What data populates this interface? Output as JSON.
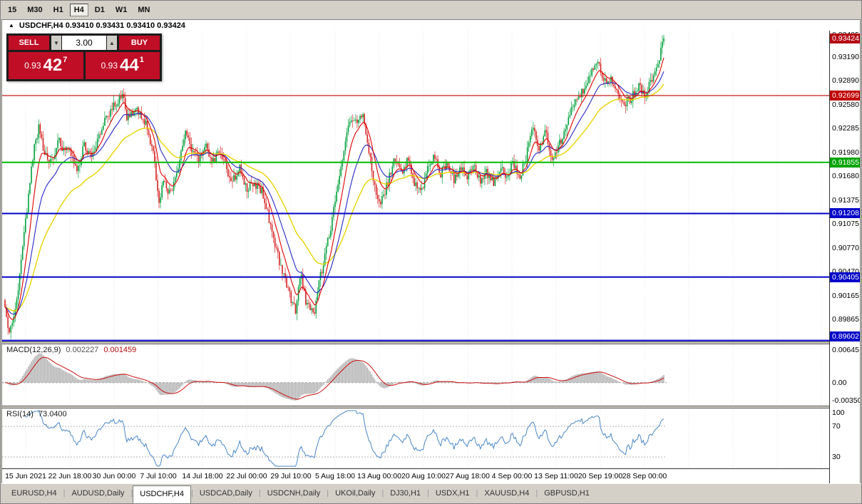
{
  "toolbar": {
    "periods": [
      "15",
      "M30",
      "H1",
      "H4",
      "D1",
      "W1",
      "MN"
    ],
    "active": "H4"
  },
  "chart_header": {
    "toggle_icon": "▲",
    "title": "USDCHF,H4 0.93410 0.93431 0.93410 0.93424"
  },
  "trade_panel": {
    "sell_label": "SELL",
    "buy_label": "BUY",
    "volume": "3.00",
    "down_arrow": "▼",
    "up_arrow": "▲",
    "sell_price": {
      "base": "0.93",
      "big": "42",
      "sup": "7"
    },
    "buy_price": {
      "base": "0.93",
      "big": "44",
      "sup": "1"
    },
    "button_color": "#c00e27"
  },
  "price_scale": {
    "ticks": [
      "0.93495",
      "0.93190",
      "0.92890",
      "0.92580",
      "0.92285",
      "0.91980",
      "0.91680",
      "0.91375",
      "0.91075",
      "0.90770",
      "0.90470",
      "0.90165",
      "0.89865"
    ],
    "badges": [
      {
        "text": "0.93424",
        "price": 0.93424,
        "color": "#b40a14"
      },
      {
        "text": "0.92699",
        "price": 0.92699,
        "color": "#c00000"
      },
      {
        "text": "0.91855",
        "price": 0.91855,
        "color": "#00a400"
      },
      {
        "text": "0.91208",
        "price": 0.91208,
        "color": "#0000c8"
      },
      {
        "text": "0.90405",
        "price": 0.90405,
        "color": "#0000c8"
      },
      {
        "text": "0.89602",
        "price": 0.89602,
        "color": "#0000c8"
      }
    ]
  },
  "macd": {
    "label": "MACD(12,26,9)",
    "value_main": "0.002227",
    "value_signal": "0.001459",
    "ticks": [
      {
        "text": "0.00645",
        "value": 0.00645
      },
      {
        "text": "0.00",
        "value": 0
      },
      {
        "text": "-0.00350",
        "value": -0.0035
      }
    ]
  },
  "rsi": {
    "label": "RSI(14)",
    "value": "73.0400",
    "ticks": [
      {
        "text": "100",
        "value": 100
      },
      {
        "text": "70",
        "value": 70
      },
      {
        "text": "30",
        "value": 30
      }
    ]
  },
  "time_axis": {
    "labels": [
      "15 Jun 2021",
      "22 Jun 18:00",
      "30 Jun 00:00",
      "7 Jul 10:00",
      "14 Jul 18:00",
      "22 Jul 00:00",
      "29 Jul 10:00",
      "5 Aug 18:00",
      "13 Aug 00:00",
      "20 Aug 10:00",
      "27 Aug 18:00",
      "4 Sep 00:00",
      "13 Sep 11:00",
      "20 Sep 19:00",
      "28 Sep 00:00"
    ]
  },
  "tabs": {
    "divider": "|",
    "active_index": 2,
    "items": [
      "EURUSD,H4",
      "AUDUSD,Daily",
      "USDCHF,H4",
      "USDCAD,Daily",
      "USDCNH,Daily",
      "UKOil,Daily",
      "DJ30,H1",
      "USDX,H1",
      "XAUUSD,H4",
      "GBPUSD,H1"
    ]
  },
  "chart_data": {
    "type": "candlestick",
    "title": "USDCHF,H4",
    "current_bar": {
      "open": 0.9341,
      "high": 0.93431,
      "low": 0.9341,
      "close": 0.93424
    },
    "last_close": 0.93424,
    "y_axis": {
      "top": 0.9352,
      "bottom": 0.8959
    },
    "candles": {
      "count": 450,
      "seed": 11,
      "noise": 0.00058,
      "wick": 0.0009
    },
    "close_path": [
      [
        0.0,
        0.9005
      ],
      [
        0.005,
        0.8968
      ],
      [
        0.013,
        0.8988
      ],
      [
        0.022,
        0.904
      ],
      [
        0.033,
        0.9125
      ],
      [
        0.044,
        0.9205
      ],
      [
        0.052,
        0.9231
      ],
      [
        0.061,
        0.9193
      ],
      [
        0.071,
        0.9184
      ],
      [
        0.081,
        0.9213
      ],
      [
        0.091,
        0.92
      ],
      [
        0.102,
        0.9196
      ],
      [
        0.11,
        0.9172
      ],
      [
        0.12,
        0.9207
      ],
      [
        0.131,
        0.9189
      ],
      [
        0.143,
        0.9221
      ],
      [
        0.156,
        0.9245
      ],
      [
        0.17,
        0.9262
      ],
      [
        0.177,
        0.9274
      ],
      [
        0.185,
        0.9244
      ],
      [
        0.199,
        0.9254
      ],
      [
        0.213,
        0.9237
      ],
      [
        0.226,
        0.9192
      ],
      [
        0.233,
        0.9136
      ],
      [
        0.241,
        0.9159
      ],
      [
        0.251,
        0.9145
      ],
      [
        0.263,
        0.9179
      ],
      [
        0.274,
        0.9221
      ],
      [
        0.284,
        0.9201
      ],
      [
        0.294,
        0.9191
      ],
      [
        0.304,
        0.9209
      ],
      [
        0.314,
        0.9187
      ],
      [
        0.324,
        0.9197
      ],
      [
        0.336,
        0.9177
      ],
      [
        0.346,
        0.9161
      ],
      [
        0.356,
        0.9182
      ],
      [
        0.366,
        0.9153
      ],
      [
        0.377,
        0.9158
      ],
      [
        0.389,
        0.9151
      ],
      [
        0.399,
        0.912
      ],
      [
        0.409,
        0.9083
      ],
      [
        0.42,
        0.905
      ],
      [
        0.431,
        0.902
      ],
      [
        0.441,
        0.9
      ],
      [
        0.449,
        0.9046
      ],
      [
        0.456,
        0.901
      ],
      [
        0.463,
        0.9001
      ],
      [
        0.47,
        0.8998
      ],
      [
        0.478,
        0.904
      ],
      [
        0.487,
        0.9072
      ],
      [
        0.497,
        0.9115
      ],
      [
        0.507,
        0.9168
      ],
      [
        0.517,
        0.9215
      ],
      [
        0.527,
        0.9243
      ],
      [
        0.535,
        0.9236
      ],
      [
        0.543,
        0.9244
      ],
      [
        0.553,
        0.9196
      ],
      [
        0.563,
        0.9148
      ],
      [
        0.571,
        0.9134
      ],
      [
        0.581,
        0.9161
      ],
      [
        0.591,
        0.9187
      ],
      [
        0.601,
        0.9171
      ],
      [
        0.611,
        0.9189
      ],
      [
        0.621,
        0.9159
      ],
      [
        0.631,
        0.9146
      ],
      [
        0.641,
        0.9177
      ],
      [
        0.651,
        0.9197
      ],
      [
        0.661,
        0.9171
      ],
      [
        0.671,
        0.9187
      ],
      [
        0.681,
        0.9164
      ],
      [
        0.691,
        0.9178
      ],
      [
        0.701,
        0.9168
      ],
      [
        0.711,
        0.9181
      ],
      [
        0.721,
        0.9162
      ],
      [
        0.731,
        0.9172
      ],
      [
        0.741,
        0.916
      ],
      [
        0.751,
        0.9179
      ],
      [
        0.761,
        0.9169
      ],
      [
        0.771,
        0.9184
      ],
      [
        0.781,
        0.9166
      ],
      [
        0.791,
        0.9192
      ],
      [
        0.801,
        0.9229
      ],
      [
        0.811,
        0.9201
      ],
      [
        0.821,
        0.9226
      ],
      [
        0.831,
        0.9187
      ],
      [
        0.841,
        0.9206
      ],
      [
        0.851,
        0.9233
      ],
      [
        0.861,
        0.9256
      ],
      [
        0.873,
        0.9271
      ],
      [
        0.883,
        0.9286
      ],
      [
        0.893,
        0.9303
      ],
      [
        0.9,
        0.9316
      ],
      [
        0.909,
        0.9287
      ],
      [
        0.919,
        0.9294
      ],
      [
        0.93,
        0.9276
      ],
      [
        0.941,
        0.9258
      ],
      [
        0.952,
        0.9269
      ],
      [
        0.962,
        0.9282
      ],
      [
        0.971,
        0.9272
      ],
      [
        0.981,
        0.9289
      ],
      [
        0.989,
        0.9303
      ],
      [
        1.0,
        0.9342
      ]
    ],
    "h_lines": [
      {
        "price": 0.92699,
        "color": "#c00000",
        "width": 1.2
      },
      {
        "price": 0.91855,
        "color": "#00bc00",
        "width": 2
      },
      {
        "price": 0.91208,
        "color": "#0000c8",
        "width": 2
      },
      {
        "price": 0.90405,
        "color": "#0000c8",
        "width": 2
      },
      {
        "price": 0.89602,
        "color": "#0000c8",
        "width": 2
      }
    ],
    "ma": [
      {
        "period": 48,
        "color": "#e8d400",
        "width": 1.4
      },
      {
        "period": 21,
        "color": "#2828c8",
        "width": 1.1
      },
      {
        "period": 9,
        "color": "#e00000",
        "width": 1.1
      }
    ],
    "colors": {
      "bull": "#00a03c",
      "bear": "#d62222",
      "grid": "#e7e7e7",
      "macd_hist": "#b4b4b4",
      "macd_signal": "#cc1111",
      "rsi_line": "#4a86c8",
      "rsi_level": "#b0b0b0"
    },
    "macd_axis": {
      "top": 0.0075,
      "bottom": -0.0045,
      "periods": [
        12,
        26,
        9
      ]
    },
    "rsi_axis": {
      "a": 100.25,
      "b": 1.075,
      "period": 14,
      "levels": [
        70,
        30
      ]
    }
  }
}
